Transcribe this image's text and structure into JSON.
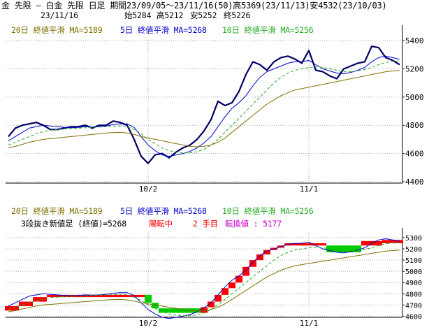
{
  "header": {
    "title": "金 先限 – 白金 先限 日足 期間23/09/05〜23/11/16(50)高5369(23/11/13)安4532(23/10/03)",
    "date": "23/11/16",
    "open_label": "始5284",
    "high_label": "高5212",
    "low_label": "安5252",
    "close_label": "終5226"
  },
  "colors": {
    "price": "#000066",
    "ma5": "#0000cc",
    "ma10": "#22aa22",
    "ma20": "#807000",
    "up": "#ff0000",
    "down": "#00cc00",
    "turn": "#cc00cc",
    "grid": "#aaaaaa"
  },
  "chart_data": [
    {
      "type": "line",
      "title": "",
      "legend": [
        {
          "key": "ma20",
          "text": "20日 終値平滑 MA=5189"
        },
        {
          "key": "ma5",
          "text": "5日 終値平滑 MA=5268"
        },
        {
          "key": "ma10",
          "text": "10日 終値平滑 MA=5256"
        }
      ],
      "x_ticks": [
        {
          "index": 20,
          "label": "10/2"
        },
        {
          "index": 43,
          "label": "11/1"
        }
      ],
      "y_ticks": [
        4400,
        4600,
        4800,
        5000,
        5200,
        5400
      ],
      "ylim": [
        4390,
        5480
      ],
      "grid": true,
      "series": [
        {
          "name": "price",
          "values": [
            4720,
            4780,
            4800,
            4810,
            4820,
            4800,
            4770,
            4770,
            4780,
            4790,
            4790,
            4800,
            4780,
            4800,
            4800,
            4830,
            4820,
            4800,
            4700,
            4580,
            4530,
            4590,
            4600,
            4570,
            4610,
            4640,
            4660,
            4700,
            4760,
            4840,
            4970,
            4940,
            4960,
            5040,
            5160,
            5250,
            5230,
            5190,
            5250,
            5280,
            5290,
            5270,
            5240,
            5330,
            5190,
            5180,
            5150,
            5130,
            5200,
            5220,
            5240,
            5250,
            5360,
            5350,
            5280,
            5260,
            5230
          ]
        },
        {
          "name": "ma5",
          "values": [
            4690,
            4720,
            4750,
            4780,
            4790,
            4800,
            4795,
            4790,
            4785,
            4782,
            4785,
            4790,
            4788,
            4790,
            4795,
            4805,
            4810,
            4810,
            4785,
            4720,
            4660,
            4620,
            4590,
            4580,
            4590,
            4600,
            4615,
            4640,
            4675,
            4720,
            4790,
            4860,
            4920,
            4960,
            5010,
            5080,
            5140,
            5180,
            5200,
            5220,
            5240,
            5250,
            5250,
            5260,
            5230,
            5200,
            5185,
            5170,
            5165,
            5175,
            5190,
            5210,
            5250,
            5280,
            5290,
            5280,
            5268
          ]
        },
        {
          "name": "ma10",
          "values": [
            4660,
            4680,
            4700,
            4720,
            4740,
            4755,
            4765,
            4770,
            4775,
            4778,
            4780,
            4782,
            4785,
            4788,
            4790,
            4792,
            4795,
            4790,
            4770,
            4740,
            4700,
            4670,
            4640,
            4620,
            4610,
            4605,
            4605,
            4612,
            4630,
            4660,
            4700,
            4750,
            4800,
            4850,
            4900,
            4950,
            5000,
            5050,
            5100,
            5140,
            5170,
            5190,
            5200,
            5210,
            5215,
            5210,
            5200,
            5190,
            5180,
            5180,
            5185,
            5195,
            5210,
            5230,
            5245,
            5255,
            5256
          ]
        },
        {
          "name": "ma20",
          "values": [
            4640,
            4650,
            4665,
            4680,
            4690,
            4700,
            4705,
            4710,
            4715,
            4720,
            4725,
            4730,
            4735,
            4740,
            4745,
            4748,
            4750,
            4745,
            4735,
            4720,
            4710,
            4700,
            4690,
            4680,
            4670,
            4660,
            4650,
            4648,
            4650,
            4660,
            4680,
            4710,
            4750,
            4790,
            4830,
            4870,
            4910,
            4950,
            4980,
            5010,
            5030,
            5050,
            5060,
            5070,
            5080,
            5090,
            5100,
            5110,
            5120,
            5130,
            5140,
            5150,
            5160,
            5170,
            5180,
            5185,
            5189
          ]
        }
      ]
    },
    {
      "type": "line",
      "title": "",
      "legend": [
        {
          "key": "ma20",
          "text": "20日 終値平滑 MA=5189"
        },
        {
          "key": "ma5",
          "text": "5日 終値平滑 MA=5268"
        },
        {
          "key": "ma10",
          "text": "10日 終値平滑 MA=5256"
        }
      ],
      "info_line": [
        {
          "key": "text",
          "text": "3段抜き新値足 (終値)=5268"
        },
        {
          "key": "up",
          "text": "陽転中"
        },
        {
          "key": "up",
          "text": "2 手目"
        },
        {
          "key": "turn",
          "text": "転換値 : 5177"
        }
      ],
      "x_ticks": [
        {
          "index": 20,
          "label": "10/2"
        },
        {
          "index": 43,
          "label": "11/1"
        }
      ],
      "y_ticks": [
        4600,
        4700,
        4800,
        4900,
        5000,
        5100,
        5200,
        5300
      ],
      "ylim": [
        4590,
        5350
      ],
      "grid": true,
      "bricks": [
        {
          "from_index": 0,
          "to_index": 1,
          "open": 4650,
          "close": 4690,
          "direction": "up"
        },
        {
          "from_index": 2,
          "to_index": 3,
          "open": 4690,
          "close": 4730,
          "direction": "up"
        },
        {
          "from_index": 4,
          "to_index": 5,
          "open": 4730,
          "close": 4770,
          "direction": "up"
        },
        {
          "from_index": 6,
          "to_index": 19,
          "open": 4770,
          "close": 4790,
          "direction": "up"
        },
        {
          "from_index": 20,
          "to_index": 20,
          "open": 4790,
          "close": 4720,
          "direction": "down"
        },
        {
          "from_index": 21,
          "to_index": 21,
          "open": 4720,
          "close": 4670,
          "direction": "down"
        },
        {
          "from_index": 22,
          "to_index": 27,
          "open": 4670,
          "close": 4630,
          "direction": "down"
        },
        {
          "from_index": 28,
          "to_index": 28,
          "open": 4630,
          "close": 4680,
          "direction": "up"
        },
        {
          "from_index": 29,
          "to_index": 29,
          "open": 4680,
          "close": 4730,
          "direction": "up"
        },
        {
          "from_index": 30,
          "to_index": 30,
          "open": 4730,
          "close": 4790,
          "direction": "up"
        },
        {
          "from_index": 31,
          "to_index": 31,
          "open": 4790,
          "close": 4850,
          "direction": "up"
        },
        {
          "from_index": 32,
          "to_index": 32,
          "open": 4850,
          "close": 4900,
          "direction": "up"
        },
        {
          "from_index": 33,
          "to_index": 33,
          "open": 4900,
          "close": 4960,
          "direction": "up"
        },
        {
          "from_index": 34,
          "to_index": 34,
          "open": 4960,
          "close": 5040,
          "direction": "up"
        },
        {
          "from_index": 35,
          "to_index": 35,
          "open": 5040,
          "close": 5100,
          "direction": "up"
        },
        {
          "from_index": 36,
          "to_index": 36,
          "open": 5100,
          "close": 5150,
          "direction": "up"
        },
        {
          "from_index": 37,
          "to_index": 37,
          "open": 5150,
          "close": 5190,
          "direction": "up"
        },
        {
          "from_index": 38,
          "to_index": 38,
          "open": 5190,
          "close": 5210,
          "direction": "up"
        },
        {
          "from_index": 39,
          "to_index": 39,
          "open": 5210,
          "close": 5230,
          "direction": "up"
        },
        {
          "from_index": 40,
          "to_index": 45,
          "open": 5230,
          "close": 5250,
          "direction": "up"
        },
        {
          "from_index": 46,
          "to_index": 50,
          "open": 5230,
          "close": 5170,
          "direction": "down"
        },
        {
          "from_index": 51,
          "to_index": 53,
          "open": 5230,
          "close": 5270,
          "direction": "up"
        },
        {
          "from_index": 54,
          "to_index": 56,
          "open": 5250,
          "close": 5280,
          "direction": "up"
        }
      ],
      "series": [
        {
          "name": "ma5",
          "values": [
            4690,
            4720,
            4750,
            4780,
            4790,
            4800,
            4795,
            4790,
            4785,
            4782,
            4785,
            4790,
            4788,
            4790,
            4795,
            4805,
            4810,
            4810,
            4785,
            4720,
            4660,
            4620,
            4590,
            4580,
            4590,
            4600,
            4615,
            4640,
            4675,
            4720,
            4790,
            4860,
            4920,
            4960,
            5010,
            5080,
            5140,
            5180,
            5200,
            5220,
            5240,
            5250,
            5250,
            5260,
            5230,
            5200,
            5185,
            5170,
            5165,
            5175,
            5190,
            5210,
            5250,
            5280,
            5290,
            5280,
            5268
          ]
        },
        {
          "name": "ma10",
          "values": [
            4660,
            4680,
            4700,
            4720,
            4740,
            4755,
            4765,
            4770,
            4775,
            4778,
            4780,
            4782,
            4785,
            4788,
            4790,
            4792,
            4795,
            4790,
            4770,
            4740,
            4700,
            4670,
            4640,
            4620,
            4610,
            4605,
            4605,
            4612,
            4630,
            4660,
            4700,
            4750,
            4800,
            4850,
            4900,
            4950,
            5000,
            5050,
            5100,
            5140,
            5170,
            5190,
            5200,
            5210,
            5215,
            5210,
            5200,
            5190,
            5180,
            5180,
            5185,
            5195,
            5210,
            5230,
            5245,
            5255,
            5256
          ]
        },
        {
          "name": "ma20",
          "values": [
            4640,
            4650,
            4665,
            4680,
            4690,
            4700,
            4705,
            4710,
            4715,
            4720,
            4725,
            4730,
            4735,
            4740,
            4745,
            4748,
            4750,
            4745,
            4735,
            4720,
            4710,
            4700,
            4690,
            4680,
            4670,
            4660,
            4650,
            4648,
            4650,
            4660,
            4680,
            4710,
            4750,
            4790,
            4830,
            4870,
            4910,
            4950,
            4980,
            5010,
            5030,
            5050,
            5060,
            5070,
            5080,
            5090,
            5100,
            5110,
            5120,
            5130,
            5140,
            5150,
            5160,
            5170,
            5180,
            5185,
            5189
          ]
        }
      ]
    }
  ]
}
